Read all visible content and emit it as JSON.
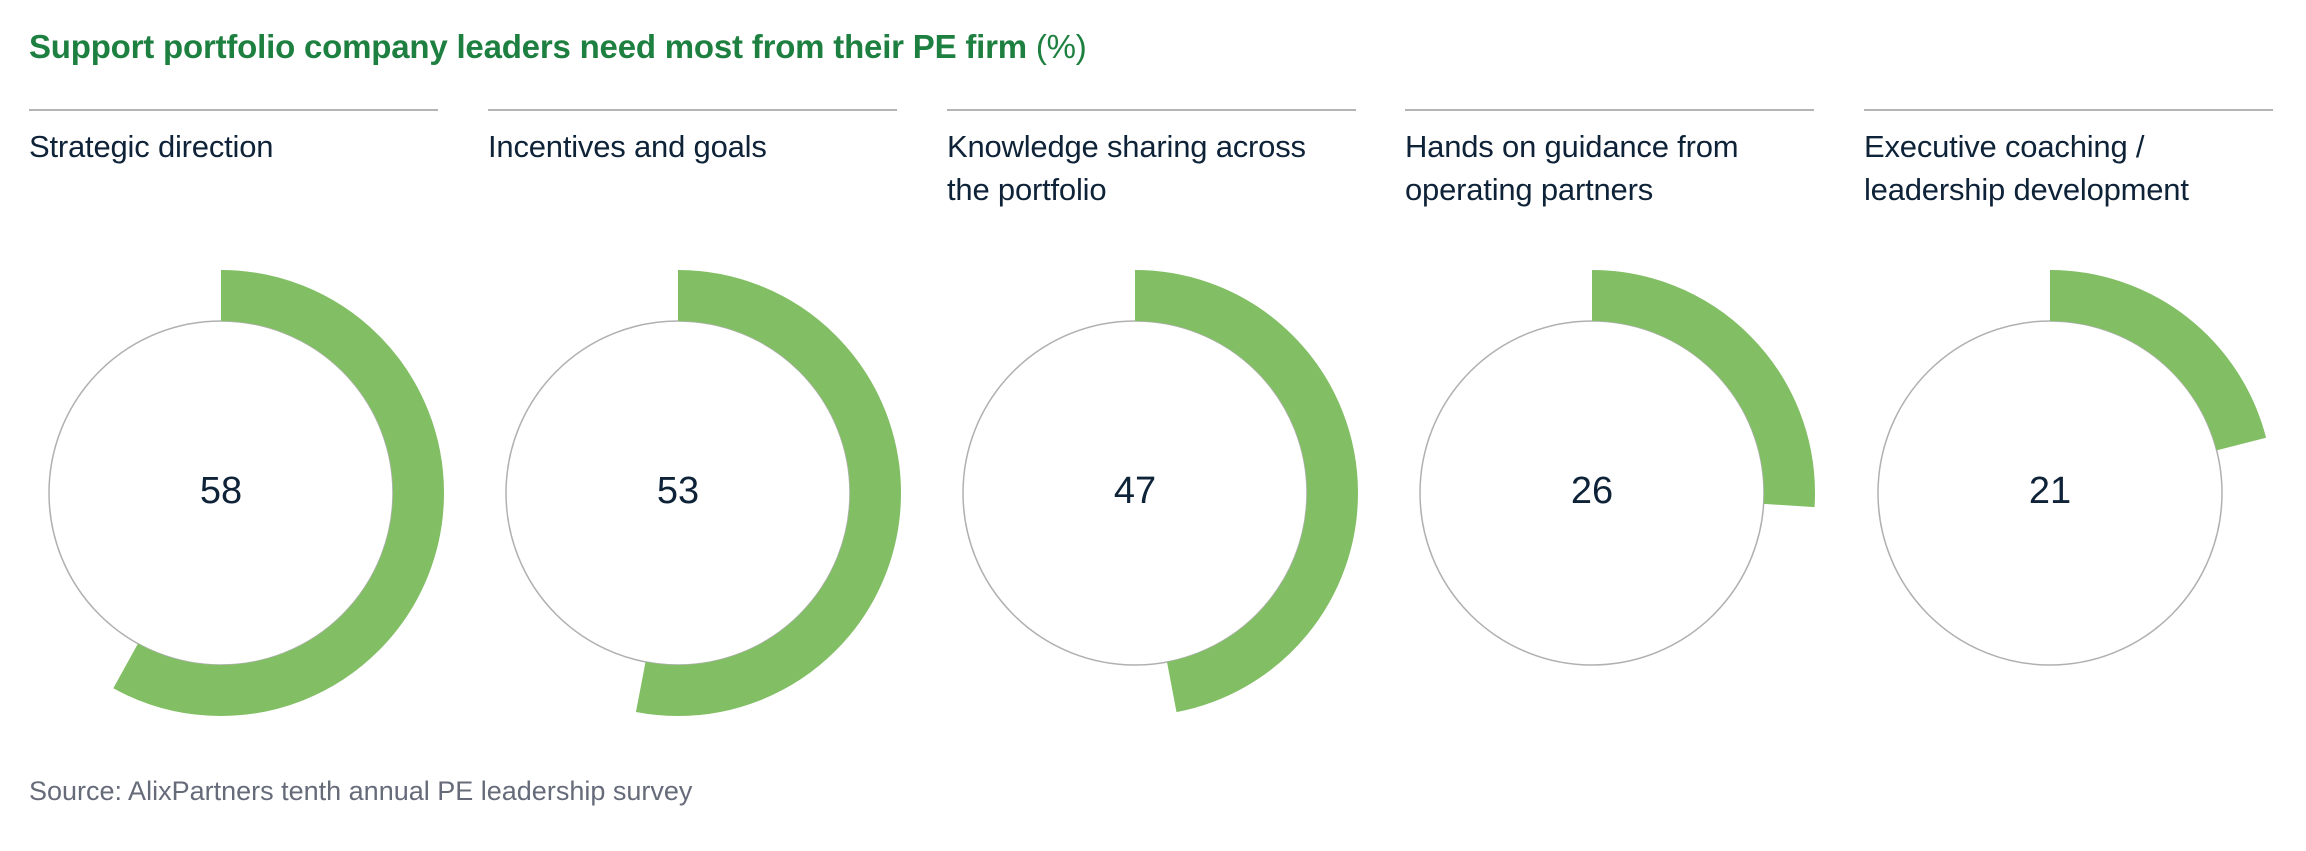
{
  "header": {
    "title_bold": "Support portfolio company leaders need most from their PE firm",
    "title_unit": "(%)"
  },
  "footer": {
    "source": "Source: AlixPartners tenth annual PE leadership survey"
  },
  "colors": {
    "title_green": "#1e8040",
    "ring_fill": "#82be64",
    "ring_track": "#b0b0b0",
    "rule": "#b4b4b4",
    "label_text": "#0e2238",
    "source_text": "#666b7a"
  },
  "items": [
    {
      "label_lines": [
        "Strategic direction"
      ],
      "value": "58"
    },
    {
      "label_lines": [
        "Incentives and goals"
      ],
      "value": "53"
    },
    {
      "label_lines": [
        "Knowledge sharing across",
        "the portfolio"
      ],
      "value": "47"
    },
    {
      "label_lines": [
        "Hands on guidance from",
        "operating partners"
      ],
      "value": "26"
    },
    {
      "label_lines": [
        "Executive coaching /",
        "leadership development"
      ],
      "value": "21"
    }
  ],
  "chart_data": {
    "type": "pie",
    "subtype": "radial-progress-rings",
    "title": "Support portfolio company leaders need most from their PE firm (%)",
    "unit": "%",
    "categories": [
      "Strategic direction",
      "Incentives and goals",
      "Knowledge sharing across the portfolio",
      "Hands on guidance from operating partners",
      "Executive coaching / leadership development"
    ],
    "values": [
      58,
      53,
      47,
      26,
      21
    ],
    "max": 100,
    "start_angle": "12 o'clock",
    "direction": "clockwise",
    "source": "Source: AlixPartners tenth annual PE leadership survey",
    "legend": "none",
    "grid": false
  }
}
